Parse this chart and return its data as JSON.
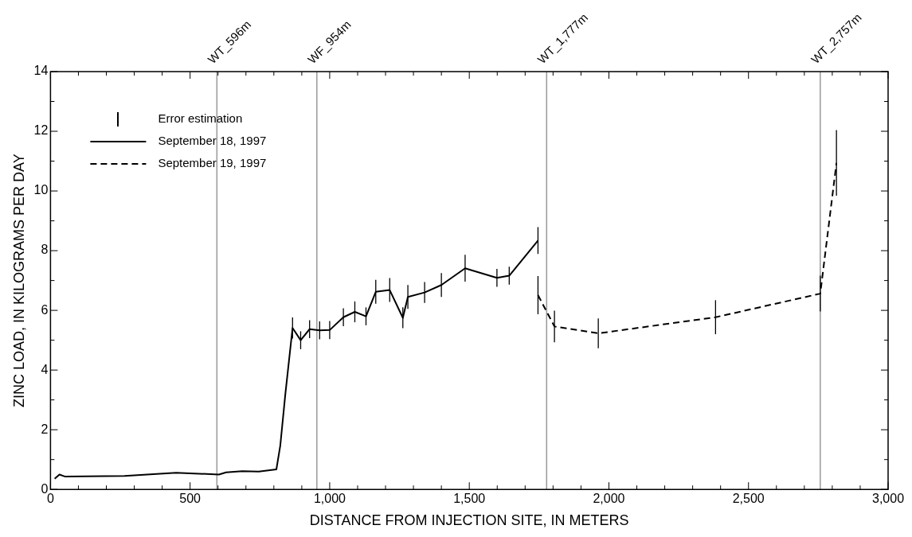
{
  "chart_data": {
    "type": "line",
    "xlabel": "DISTANCE FROM INJECTION SITE, IN METERS",
    "ylabel": "ZINC LOAD, IN KILOGRAMS PER DAY",
    "annotations": [
      "Error estimation"
    ],
    "series": [
      {
        "name": "September 18, 1997",
        "color": "#000000",
        "line_style": "solid",
        "x": [
          15,
          32,
          53,
          265,
          450,
          603,
          629,
          687,
          746,
          809,
          823,
          841,
          867,
          896,
          928,
          964,
          1000,
          1049,
          1090,
          1130,
          1165,
          1215,
          1262,
          1280,
          1340,
          1400,
          1485,
          1599,
          1643,
          1746
        ],
        "values": [
          0.36,
          0.5,
          0.43,
          0.45,
          0.56,
          0.5,
          0.57,
          0.61,
          0.6,
          0.67,
          1.47,
          3.18,
          5.41,
          5.0,
          5.37,
          5.33,
          5.34,
          5.77,
          5.95,
          5.8,
          6.62,
          6.68,
          5.75,
          6.45,
          6.6,
          6.85,
          7.41,
          7.09,
          7.16,
          8.34
        ],
        "errors": [
          null,
          null,
          null,
          null,
          null,
          null,
          null,
          null,
          null,
          null,
          null,
          null,
          0.35,
          0.3,
          0.3,
          0.3,
          0.3,
          0.3,
          0.35,
          0.3,
          0.4,
          0.4,
          0.35,
          0.4,
          0.35,
          0.4,
          0.45,
          0.3,
          0.3,
          0.45
        ]
      },
      {
        "name": "September 19, 1997",
        "color": "#000000",
        "line_style": "dashed",
        "x": [
          1746,
          1805,
          1962,
          2382,
          2757,
          2815
        ],
        "values": [
          6.51,
          5.46,
          5.23,
          5.77,
          6.56,
          10.94
        ],
        "errors": [
          0.64,
          0.53,
          0.5,
          0.57,
          0.6,
          1.1
        ]
      }
    ],
    "marker": "none",
    "grid": false,
    "legend": "top left",
    "xlim": [
      0,
      3000
    ],
    "xticks": [
      0,
      {
        "value": 100,
        "label": null
      },
      {
        "value": 200,
        "label": null
      },
      {
        "value": 300,
        "label": null
      },
      {
        "value": 400,
        "label": null
      },
      500,
      {
        "value": 600,
        "label": null
      },
      {
        "value": 700,
        "label": null
      },
      {
        "value": 800,
        "label": null
      },
      {
        "value": 900,
        "label": null
      },
      {
        "value": 1000,
        "label": "1,000"
      },
      {
        "value": 1100,
        "label": null
      },
      {
        "value": 1200,
        "label": null
      },
      {
        "value": 1300,
        "label": null
      },
      {
        "value": 1400,
        "label": null
      },
      {
        "value": 1500,
        "label": "1,500"
      },
      {
        "value": 1600,
        "label": null
      },
      {
        "value": 1700,
        "label": null
      },
      {
        "value": 1800,
        "label": null
      },
      {
        "value": 1900,
        "label": null
      },
      {
        "value": 2000,
        "label": "2,000"
      },
      {
        "value": 2100,
        "label": null
      },
      {
        "value": 2200,
        "label": null
      },
      {
        "value": 2300,
        "label": null
      },
      {
        "value": 2400,
        "label": null
      },
      {
        "value": 2500,
        "label": "2,500"
      },
      {
        "value": 2600,
        "label": null
      },
      {
        "value": 2700,
        "label": null
      },
      {
        "value": 2800,
        "label": null
      },
      {
        "value": 2900,
        "label": null
      },
      {
        "value": 3000,
        "label": "3,000"
      }
    ],
    "ylim": [
      0,
      14
    ],
    "yticks": [
      0,
      {
        "value": 1,
        "label": null
      },
      2,
      {
        "value": 3,
        "label": null
      },
      4,
      {
        "value": 5,
        "label": null
      },
      6,
      {
        "value": 7,
        "label": null
      },
      8,
      {
        "value": 9,
        "label": null
      },
      10,
      {
        "value": 11,
        "label": null
      },
      12,
      {
        "value": 13,
        "label": null
      },
      14
    ],
    "ref_lines": [
      {
        "axis": "x",
        "value": 596,
        "label": "WT_596m",
        "color": "#999999"
      },
      {
        "axis": "x",
        "value": 954,
        "label": "WF_954m",
        "color": "#999999"
      },
      {
        "axis": "x",
        "value": 1777,
        "label": "WT_1,777m",
        "color": "#999999"
      },
      {
        "axis": "x",
        "value": 2757,
        "label": "WT_2,757m",
        "color": "#999999"
      }
    ]
  }
}
